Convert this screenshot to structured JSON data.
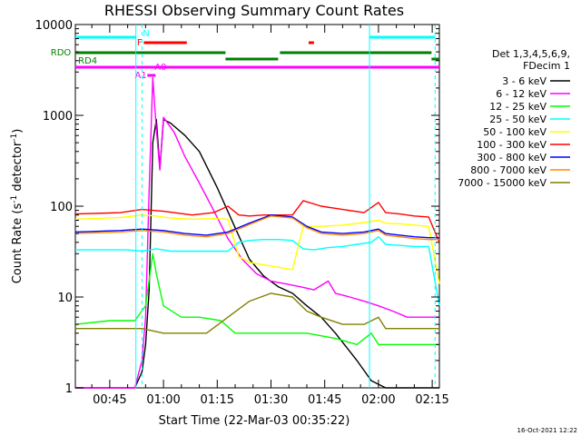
{
  "chart_data": {
    "type": "line",
    "title": "RHESSI Observing Summary Count Rates",
    "xlabel": "Start Time (22-Mar-03 00:35:22)",
    "ylabel_main": "Count Rate (s",
    "ylabel_sup1": "-1",
    "ylabel_mid": " detector",
    "ylabel_sup2": "-1",
    "ylabel_end": ")",
    "y_scale": "log",
    "ylim": [
      1,
      10000
    ],
    "xlim_minutes": [
      35.4,
      137.0
    ],
    "x_ticks": [
      {
        "label": "00:45",
        "minute": 45
      },
      {
        "label": "01:00",
        "minute": 60
      },
      {
        "label": "01:15",
        "minute": 75
      },
      {
        "label": "01:30",
        "minute": 90
      },
      {
        "label": "01:45",
        "minute": 105
      },
      {
        "label": "02:00",
        "minute": 120
      },
      {
        "label": "02:15",
        "minute": 135
      }
    ],
    "y_ticks": [
      {
        "label": "1",
        "value": 1
      },
      {
        "label": "10",
        "value": 10
      },
      {
        "label": "100",
        "value": 100
      },
      {
        "label": "1000",
        "value": 1000
      },
      {
        "label": "10000",
        "value": 10000
      }
    ],
    "legend_header": [
      "Det 1,3,4,5,6,9,",
      "FDecim 1"
    ],
    "legend_placement": "right",
    "series": [
      {
        "name": "3 - 6 keV",
        "color": "#000000",
        "points": [
          [
            35.4,
            1
          ],
          [
            52,
            1
          ],
          [
            54,
            1.5
          ],
          [
            55,
            3
          ],
          [
            56,
            12
          ],
          [
            57,
            500
          ],
          [
            58,
            900
          ],
          [
            59,
            260
          ],
          [
            60,
            900
          ],
          [
            62,
            820
          ],
          [
            66,
            600
          ],
          [
            70,
            400
          ],
          [
            75,
            160
          ],
          [
            80,
            58
          ],
          [
            84,
            26
          ],
          [
            88,
            17
          ],
          [
            92,
            13
          ],
          [
            96,
            11
          ],
          [
            100,
            8
          ],
          [
            104,
            6
          ],
          [
            108,
            4
          ],
          [
            114,
            2
          ],
          [
            118,
            1.2
          ],
          [
            122,
            1
          ],
          [
            137,
            1
          ]
        ]
      },
      {
        "name": "6 - 12 keV",
        "color": "#ff00ff",
        "points": [
          [
            35.4,
            1
          ],
          [
            52,
            1
          ],
          [
            54,
            2
          ],
          [
            55,
            6
          ],
          [
            56,
            150
          ],
          [
            57,
            2600
          ],
          [
            58,
            700
          ],
          [
            59,
            250
          ],
          [
            60,
            950
          ],
          [
            63,
            650
          ],
          [
            66,
            350
          ],
          [
            70,
            180
          ],
          [
            74,
            90
          ],
          [
            78,
            44
          ],
          [
            82,
            26
          ],
          [
            86,
            18
          ],
          [
            90,
            15
          ],
          [
            94,
            14
          ],
          [
            98,
            13
          ],
          [
            102,
            12
          ],
          [
            106,
            15
          ],
          [
            108,
            11
          ],
          [
            112,
            10
          ],
          [
            116,
            9
          ],
          [
            120,
            8
          ],
          [
            124,
            7
          ],
          [
            128,
            6
          ],
          [
            132,
            6
          ],
          [
            135,
            6
          ],
          [
            137,
            6
          ]
        ]
      },
      {
        "name": "12 - 25 keV",
        "color": "#00ff00",
        "points": [
          [
            35.4,
            5
          ],
          [
            45,
            5.5
          ],
          [
            52,
            5.5
          ],
          [
            55,
            8
          ],
          [
            57,
            30
          ],
          [
            58,
            18
          ],
          [
            60,
            8
          ],
          [
            65,
            6
          ],
          [
            70,
            6
          ],
          [
            76,
            5.5
          ],
          [
            80,
            4
          ],
          [
            90,
            4
          ],
          [
            100,
            4
          ],
          [
            108,
            3.5
          ],
          [
            114,
            3
          ],
          [
            118,
            4
          ],
          [
            120,
            3
          ],
          [
            126,
            3
          ],
          [
            130,
            3
          ],
          [
            134,
            3
          ],
          [
            137,
            3
          ]
        ]
      },
      {
        "name": "25 - 50 keV",
        "color": "#00ffff",
        "points": [
          [
            35.4,
            33
          ],
          [
            50,
            33
          ],
          [
            54,
            32
          ],
          [
            58,
            34
          ],
          [
            62,
            32
          ],
          [
            66,
            32
          ],
          [
            70,
            32
          ],
          [
            74,
            32
          ],
          [
            78,
            32
          ],
          [
            81,
            40
          ],
          [
            84,
            42
          ],
          [
            88,
            43
          ],
          [
            92,
            43
          ],
          [
            96,
            42
          ],
          [
            99,
            34
          ],
          [
            102,
            33
          ],
          [
            106,
            35
          ],
          [
            110,
            36
          ],
          [
            114,
            38
          ],
          [
            118,
            40
          ],
          [
            120,
            46
          ],
          [
            122,
            38
          ],
          [
            126,
            37
          ],
          [
            130,
            36
          ],
          [
            134,
            36
          ],
          [
            137,
            8
          ]
        ]
      },
      {
        "name": "50 - 100 keV",
        "color": "#ffff00",
        "points": [
          [
            35.4,
            72
          ],
          [
            48,
            75
          ],
          [
            54,
            80
          ],
          [
            58,
            78
          ],
          [
            62,
            74
          ],
          [
            68,
            72
          ],
          [
            74,
            73
          ],
          [
            78,
            72
          ],
          [
            81,
            28
          ],
          [
            84,
            24
          ],
          [
            90,
            22
          ],
          [
            96,
            20
          ],
          [
            99,
            60
          ],
          [
            104,
            60
          ],
          [
            110,
            62
          ],
          [
            116,
            66
          ],
          [
            120,
            70
          ],
          [
            122,
            65
          ],
          [
            126,
            64
          ],
          [
            130,
            62
          ],
          [
            134,
            60
          ],
          [
            137,
            14
          ]
        ]
      },
      {
        "name": "100 - 300 keV",
        "color": "#ff0000",
        "points": [
          [
            35.4,
            82
          ],
          [
            48,
            85
          ],
          [
            54,
            92
          ],
          [
            60,
            88
          ],
          [
            68,
            80
          ],
          [
            74,
            85
          ],
          [
            78,
            100
          ],
          [
            81,
            80
          ],
          [
            84,
            78
          ],
          [
            88,
            80
          ],
          [
            92,
            80
          ],
          [
            96,
            80
          ],
          [
            99,
            115
          ],
          [
            104,
            100
          ],
          [
            110,
            92
          ],
          [
            116,
            85
          ],
          [
            120,
            110
          ],
          [
            122,
            85
          ],
          [
            126,
            82
          ],
          [
            130,
            78
          ],
          [
            134,
            76
          ],
          [
            137,
            40
          ]
        ]
      },
      {
        "name": "300 - 800 keV",
        "color": "#0000ff",
        "points": [
          [
            35.4,
            52
          ],
          [
            48,
            54
          ],
          [
            54,
            56
          ],
          [
            60,
            54
          ],
          [
            66,
            50
          ],
          [
            72,
            48
          ],
          [
            78,
            52
          ],
          [
            84,
            65
          ],
          [
            90,
            80
          ],
          [
            96,
            76
          ],
          [
            100,
            60
          ],
          [
            104,
            52
          ],
          [
            110,
            50
          ],
          [
            116,
            52
          ],
          [
            120,
            56
          ],
          [
            122,
            50
          ],
          [
            126,
            48
          ],
          [
            130,
            46
          ],
          [
            134,
            45
          ],
          [
            137,
            45
          ]
        ]
      },
      {
        "name": "800 - 7000 keV",
        "color": "#ff8c00",
        "points": [
          [
            35.4,
            50
          ],
          [
            48,
            52
          ],
          [
            54,
            54
          ],
          [
            60,
            52
          ],
          [
            66,
            48
          ],
          [
            72,
            46
          ],
          [
            78,
            50
          ],
          [
            84,
            63
          ],
          [
            90,
            78
          ],
          [
            96,
            74
          ],
          [
            100,
            58
          ],
          [
            104,
            50
          ],
          [
            110,
            48
          ],
          [
            116,
            50
          ],
          [
            120,
            54
          ],
          [
            122,
            48
          ],
          [
            126,
            46
          ],
          [
            130,
            44
          ],
          [
            134,
            43
          ],
          [
            137,
            43
          ]
        ]
      },
      {
        "name": "7000 - 15000 keV",
        "color": "#808000",
        "points": [
          [
            35.4,
            4.5
          ],
          [
            48,
            4.5
          ],
          [
            54,
            4.5
          ],
          [
            60,
            4
          ],
          [
            66,
            4
          ],
          [
            72,
            4
          ],
          [
            78,
            6
          ],
          [
            84,
            9
          ],
          [
            90,
            11
          ],
          [
            96,
            10
          ],
          [
            100,
            7
          ],
          [
            104,
            6
          ],
          [
            110,
            5
          ],
          [
            116,
            5
          ],
          [
            120,
            6
          ],
          [
            122,
            4.5
          ],
          [
            126,
            4.5
          ],
          [
            130,
            4.5
          ],
          [
            134,
            4.5
          ],
          [
            137,
            4.5
          ]
        ]
      }
    ],
    "vertical_lines": [
      {
        "minute": 52.3,
        "color": "#00ffff",
        "style": "solid"
      },
      {
        "minute": 54.0,
        "color": "#00ffff",
        "style": "dashed"
      },
      {
        "minute": 117.5,
        "color": "#00ffff",
        "style": "solid"
      },
      {
        "minute": 135.8,
        "color": "#00ffff",
        "style": "dashed"
      }
    ],
    "flags": [
      {
        "label": "N",
        "color": "#00ffff",
        "label_minute": 54.2,
        "level": "top",
        "segments": [
          [
            35.4,
            52.3
          ],
          [
            117.5,
            135.8
          ]
        ]
      },
      {
        "label": "F",
        "color": "#ff0000",
        "label_minute": 52.6,
        "level": "f",
        "segments": [
          [
            54.5,
            66.5
          ],
          [
            100.5,
            102.0
          ]
        ]
      },
      {
        "label": "RDO",
        "color": "#008000",
        "label_minute": 28.5,
        "level": "rdo",
        "segments": [
          [
            35.4,
            77.3
          ],
          [
            92.5,
            134.8
          ]
        ]
      },
      {
        "label": "RD4",
        "color": "#008000",
        "label_minute": 36.2,
        "level": "rd4",
        "segments": [
          [
            77.3,
            92.0
          ],
          [
            134.8,
            137.0
          ]
        ]
      },
      {
        "label": "A1",
        "color": "#ff00ff",
        "label_minute": 52.0,
        "level": "a1",
        "segments": [
          [
            55.5,
            57.8
          ]
        ]
      },
      {
        "label": "A0",
        "color": "#ff00ff",
        "label_minute": 57.5,
        "level": "a0",
        "segments": [
          [
            35.4,
            137.0
          ]
        ]
      }
    ],
    "grid": false
  },
  "timestamp": "16-Oct-2021 12:22"
}
